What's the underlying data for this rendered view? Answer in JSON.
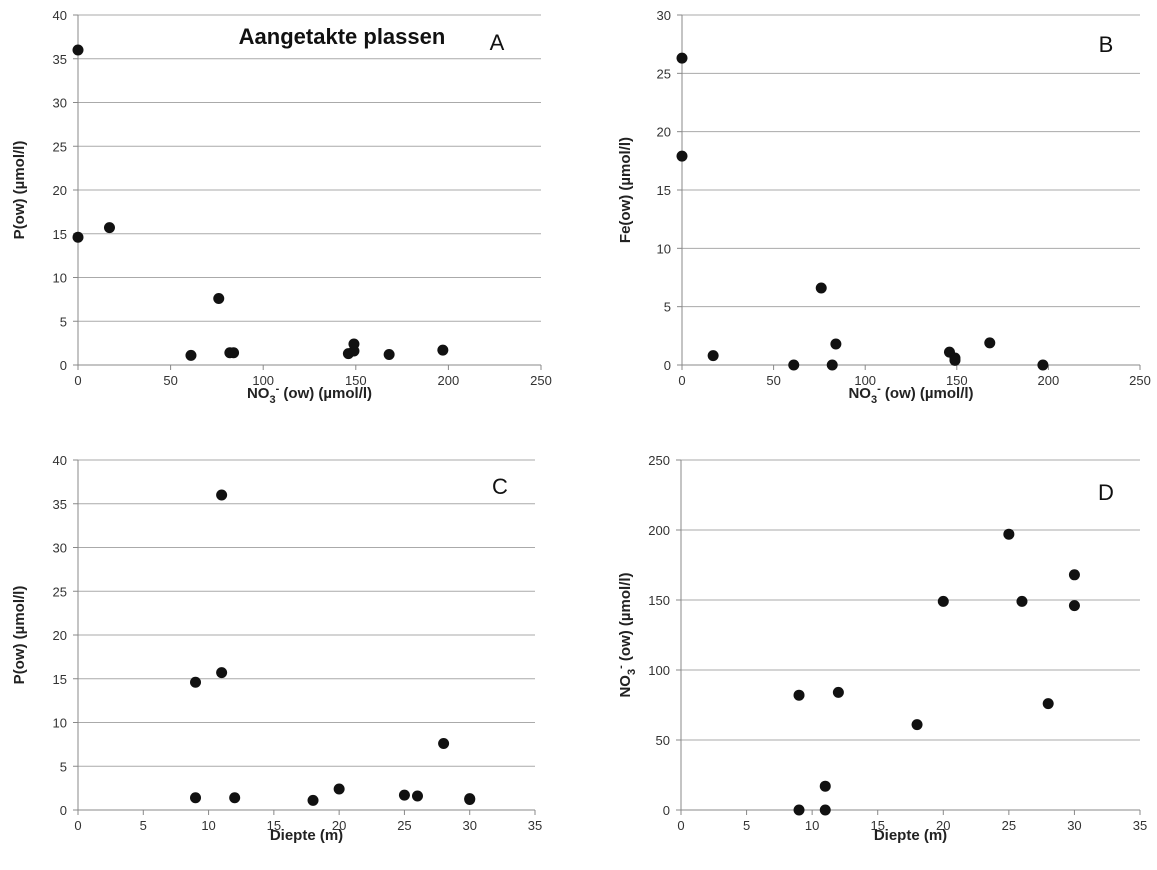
{
  "colors": {
    "marker": "#111111",
    "grid": "#aaaaaa",
    "axis": "#888888"
  },
  "chart_data": [
    {
      "type": "scatter",
      "panel": "A",
      "title": "Aangetakte plassen",
      "xlabel": {
        "pre": "NO",
        "sub": "3",
        "sup": "-",
        "post": " (ow) (µmol/l)"
      },
      "ylabel": {
        "pre": "P(ow) (µmol/l)",
        "sub": "",
        "sup": "",
        "post": ""
      },
      "xlim": [
        0,
        250
      ],
      "ylim": [
        0,
        40
      ],
      "xticks": [
        0,
        50,
        100,
        150,
        200,
        250
      ],
      "yticks": [
        0,
        5,
        10,
        15,
        20,
        25,
        30,
        35,
        40
      ],
      "grid": "horizontal",
      "points": [
        [
          0,
          36
        ],
        [
          0,
          14.6
        ],
        [
          17,
          15.7
        ],
        [
          76,
          7.6
        ],
        [
          61,
          1.1
        ],
        [
          82,
          1.4
        ],
        [
          84,
          1.4
        ],
        [
          146,
          1.3
        ],
        [
          149,
          1.6
        ],
        [
          149,
          2.4
        ],
        [
          168,
          1.2
        ],
        [
          197,
          1.7
        ]
      ]
    },
    {
      "type": "scatter",
      "panel": "B",
      "title": "",
      "xlabel": {
        "pre": "NO",
        "sub": "3",
        "sup": "-",
        "post": " (ow) (µmol/l)"
      },
      "ylabel": {
        "pre": "Fe(ow) (µmol/l)",
        "sub": "",
        "sup": "",
        "post": ""
      },
      "xlim": [
        0,
        250
      ],
      "ylim": [
        0,
        30
      ],
      "xticks": [
        0,
        50,
        100,
        150,
        200,
        250
      ],
      "yticks": [
        0,
        5,
        10,
        15,
        20,
        25,
        30
      ],
      "grid": "horizontal",
      "points": [
        [
          0,
          26.3
        ],
        [
          0,
          17.9
        ],
        [
          17,
          0.8
        ],
        [
          61,
          0
        ],
        [
          76,
          6.6
        ],
        [
          82,
          0
        ],
        [
          84,
          1.8
        ],
        [
          146,
          1.1
        ],
        [
          149,
          0.6
        ],
        [
          149,
          0.4
        ],
        [
          168,
          1.9
        ],
        [
          197,
          0
        ]
      ]
    },
    {
      "type": "scatter",
      "panel": "C",
      "title": "",
      "xlabel": {
        "pre": "Diepte  (m)",
        "sub": "",
        "sup": "",
        "post": ""
      },
      "ylabel": {
        "pre": "P(ow) (µmol/l)",
        "sub": "",
        "sup": "",
        "post": ""
      },
      "xlim": [
        0,
        35
      ],
      "ylim": [
        0,
        40
      ],
      "xticks": [
        0,
        5,
        10,
        15,
        20,
        25,
        30,
        35
      ],
      "yticks": [
        0,
        5,
        10,
        15,
        20,
        25,
        30,
        35,
        40
      ],
      "grid": "horizontal",
      "points": [
        [
          11,
          36
        ],
        [
          9,
          14.6
        ],
        [
          11,
          15.7
        ],
        [
          9,
          1.4
        ],
        [
          12,
          1.4
        ],
        [
          18,
          1.1
        ],
        [
          20,
          2.4
        ],
        [
          25,
          1.7
        ],
        [
          26,
          1.6
        ],
        [
          28,
          7.6
        ],
        [
          30,
          1.3
        ],
        [
          30,
          1.2
        ]
      ]
    },
    {
      "type": "scatter",
      "panel": "D",
      "title": "",
      "xlabel": {
        "pre": "Diepte  (m)",
        "sub": "",
        "sup": "",
        "post": ""
      },
      "ylabel": {
        "pre": "NO",
        "sub": "3",
        "sup": "-",
        "post": " (ow) (µmol/l)"
      },
      "xlim": [
        0,
        35
      ],
      "ylim": [
        0,
        250
      ],
      "xticks": [
        0,
        5,
        10,
        15,
        20,
        25,
        30,
        35
      ],
      "yticks": [
        0,
        50,
        100,
        150,
        200,
        250
      ],
      "grid": "horizontal",
      "points": [
        [
          9,
          0
        ],
        [
          9,
          82
        ],
        [
          11,
          0
        ],
        [
          11,
          17
        ],
        [
          12,
          84
        ],
        [
          18,
          61
        ],
        [
          20,
          149
        ],
        [
          25,
          197
        ],
        [
          26,
          149
        ],
        [
          28,
          76
        ],
        [
          30,
          168
        ],
        [
          30,
          146
        ]
      ]
    }
  ]
}
